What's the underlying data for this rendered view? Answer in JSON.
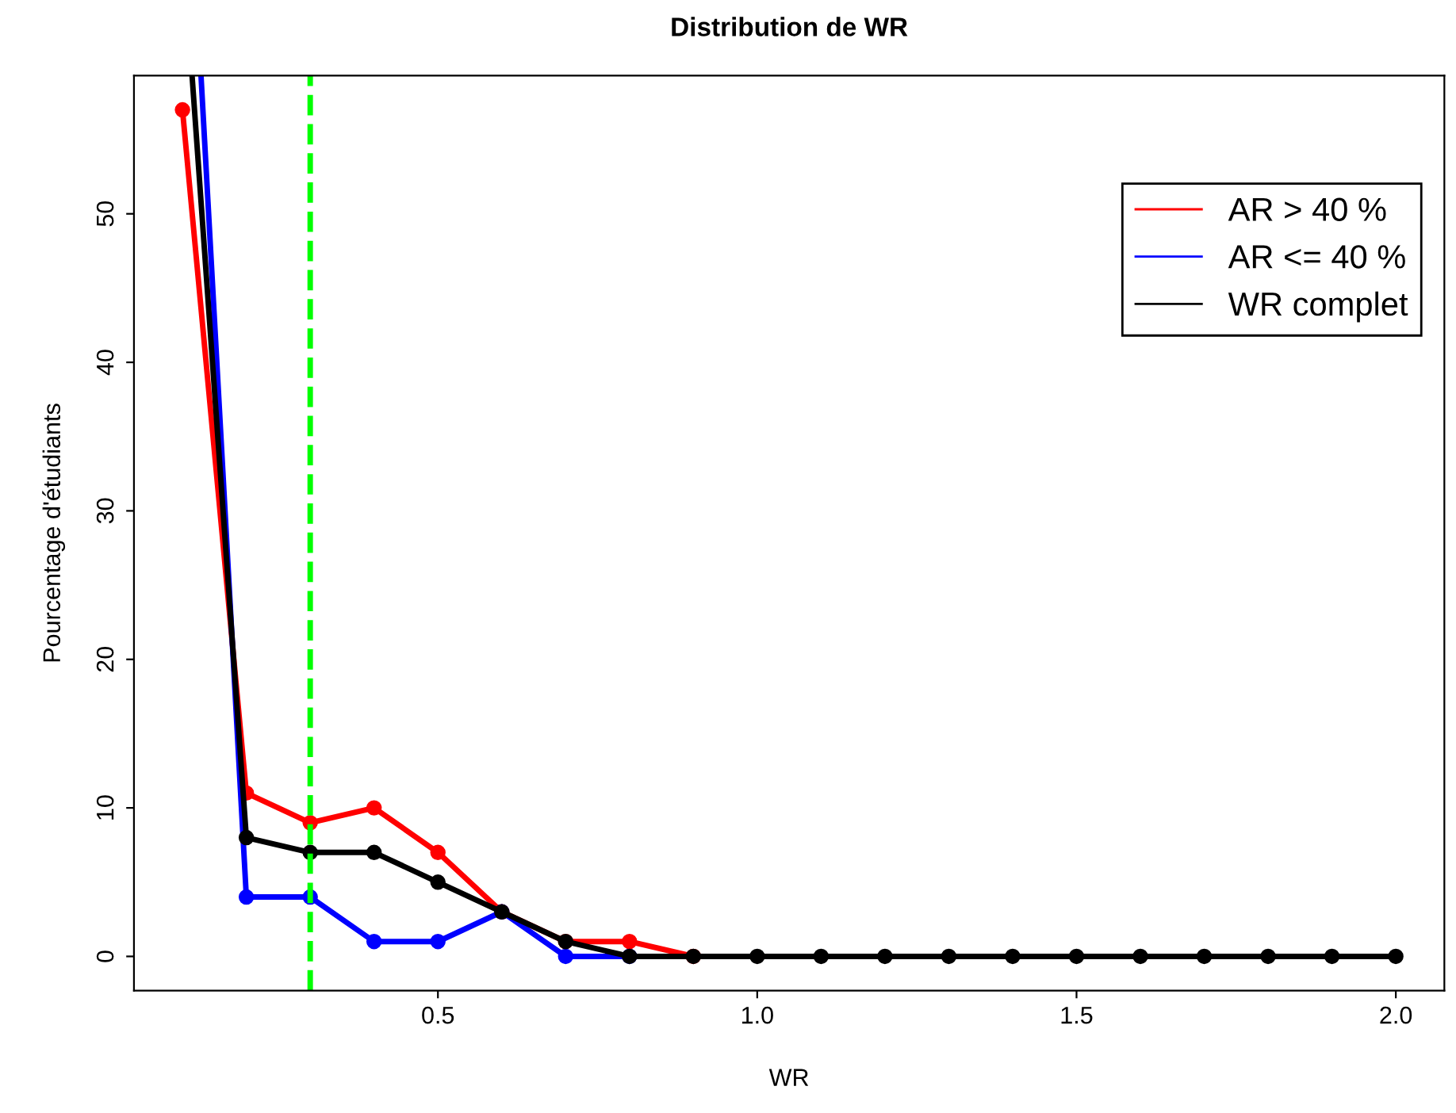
{
  "chart_data": {
    "type": "line",
    "title": "Distribution de WR",
    "xlabel": "WR",
    "ylabel": "Pourcentage d'étudiants",
    "series": [
      {
        "name": "AR > 40 %",
        "color": "#ff0000",
        "x": [
          0.1,
          0.2,
          0.3,
          0.4,
          0.5,
          0.6,
          0.7,
          0.8,
          0.9
        ],
        "values": [
          57,
          11,
          9,
          10,
          7,
          3,
          1,
          1,
          0
        ]
      },
      {
        "name": "AR <= 40 %",
        "color": "#0000ff",
        "x": [
          0.129,
          0.2,
          0.3,
          0.4,
          0.5,
          0.6,
          0.7,
          0.8
        ],
        "values": [
          59.3,
          4,
          4,
          1,
          1,
          3,
          0,
          0
        ]
      },
      {
        "name": "WR complet",
        "color": "#000000",
        "x": [
          0.115,
          0.2,
          0.3,
          0.4,
          0.5,
          0.6,
          0.7,
          0.8,
          0.9,
          1.0,
          1.1,
          1.2,
          1.3,
          1.4,
          1.5,
          1.6,
          1.7,
          1.8,
          1.9,
          2.0
        ],
        "values": [
          59.3,
          8,
          7,
          7,
          5,
          3,
          1,
          0,
          0,
          0,
          0,
          0,
          0,
          0,
          0,
          0,
          0,
          0,
          0,
          0
        ]
      }
    ],
    "xlim": [
      0.024,
      2.076
    ],
    "ylim": [
      -2.3,
      59.3
    ],
    "xticks": [
      0.5,
      {
        "value": 1.0,
        "label": "1.0"
      },
      1.5,
      {
        "value": 2.0,
        "label": "2.0"
      }
    ],
    "yticks": [
      0,
      10,
      20,
      30,
      40,
      50
    ],
    "ref_lines": [
      {
        "axis": "x",
        "value": 0.3,
        "label": null,
        "color": "#00ff00",
        "line_style": "dashed"
      }
    ],
    "marker": "circle",
    "line_style": "solid",
    "grid": false,
    "legend": "top right"
  }
}
